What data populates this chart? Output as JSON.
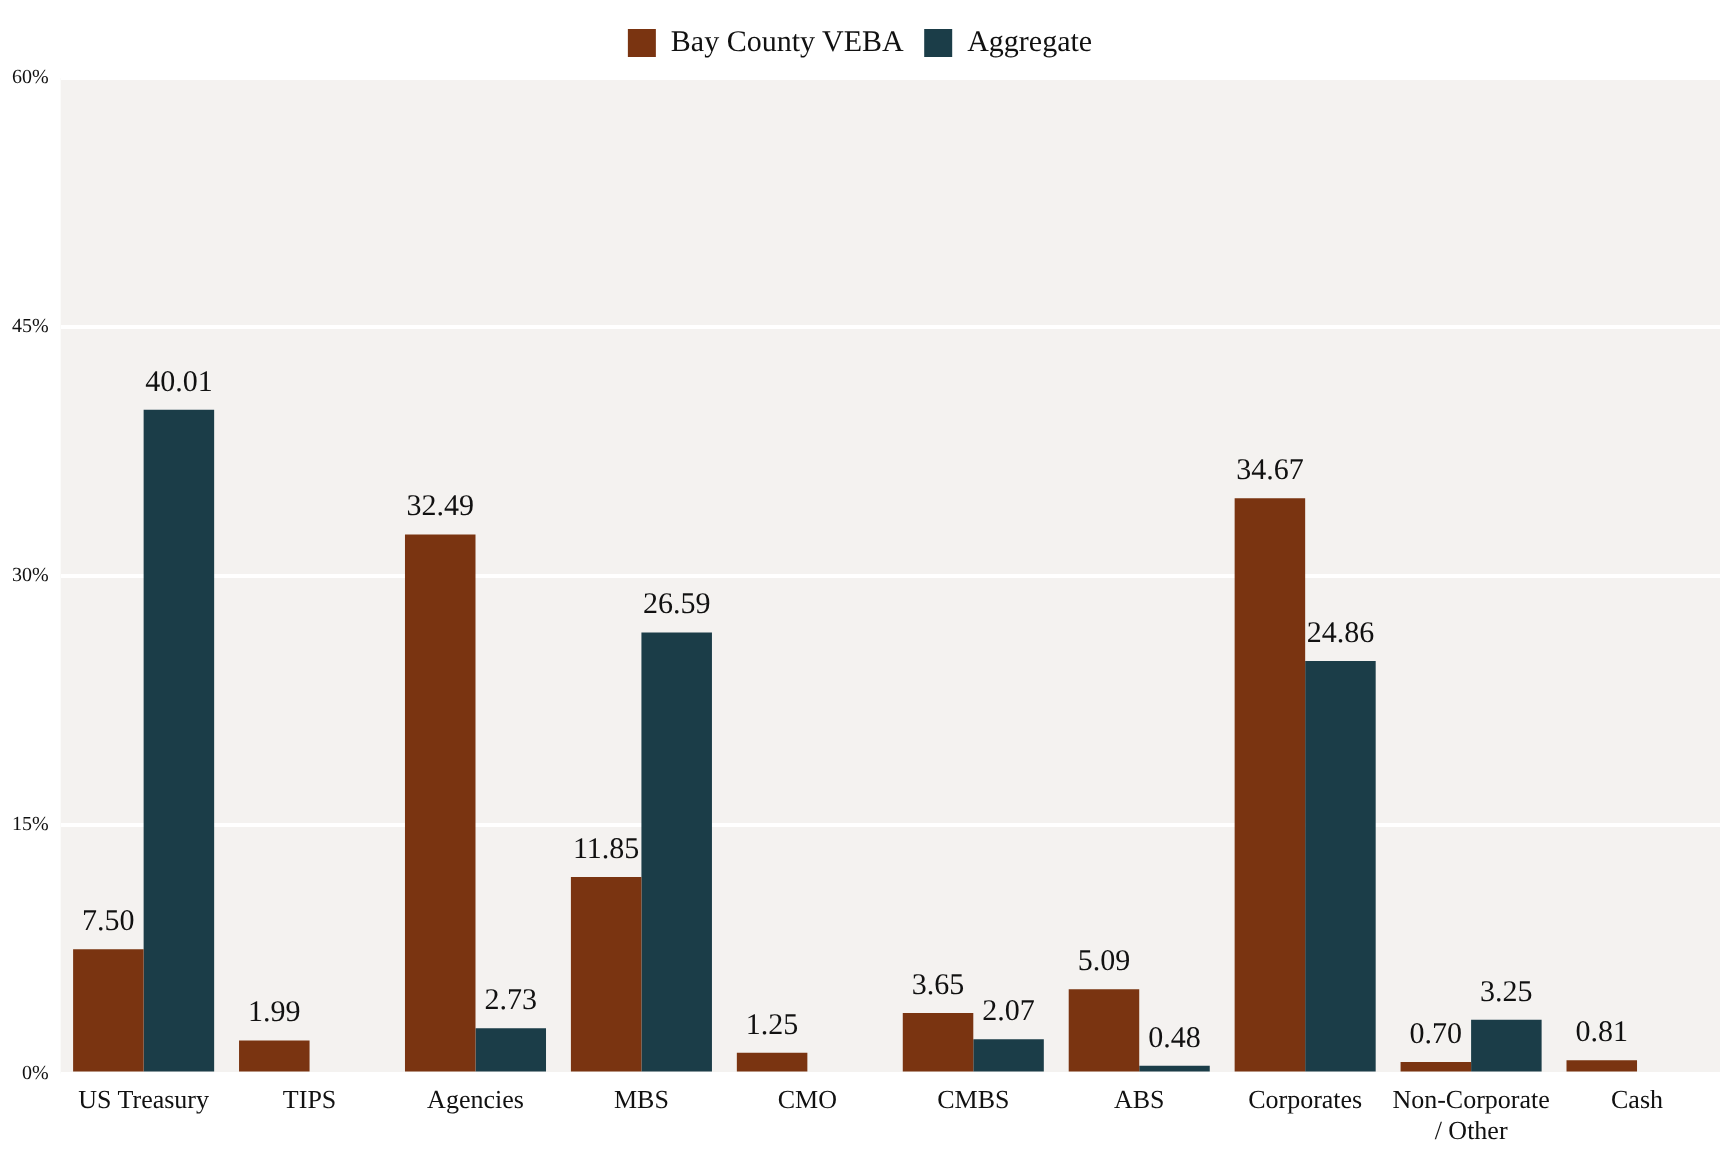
{
  "chart_data": {
    "type": "bar",
    "categories": [
      "US Treasury",
      "TIPS",
      "Agencies",
      "MBS",
      "CMO",
      "CMBS",
      "ABS",
      "Corporates",
      "Non-Corporate / Other",
      "Cash"
    ],
    "series": [
      {
        "name": "Bay County VEBA",
        "color": "#7a3411",
        "values": [
          7.5,
          1.99,
          32.49,
          11.85,
          1.25,
          3.65,
          5.09,
          34.67,
          0.7,
          0.81
        ],
        "value_labels": [
          "7.50",
          "1.99",
          "32.49",
          "11.85",
          "1.25",
          "3.65",
          "5.09",
          "34.67",
          "0.70",
          "0.81"
        ]
      },
      {
        "name": "Aggregate",
        "color": "#1b3d48",
        "values": [
          40.01,
          null,
          2.73,
          26.59,
          null,
          2.07,
          0.48,
          24.86,
          3.25,
          null
        ],
        "value_labels": [
          "40.01",
          null,
          "2.73",
          "26.59",
          null,
          "2.07",
          "0.48",
          "24.86",
          "3.25",
          null
        ]
      }
    ],
    "ylim": [
      0,
      60
    ],
    "yticks": [
      {
        "value": 0,
        "label": "0%"
      },
      {
        "value": 15,
        "label": "15%"
      },
      {
        "value": 30,
        "label": "30%"
      },
      {
        "value": 45,
        "label": "45%"
      },
      {
        "value": 60,
        "label": "60%"
      }
    ],
    "grid": "y",
    "legend": "top"
  }
}
